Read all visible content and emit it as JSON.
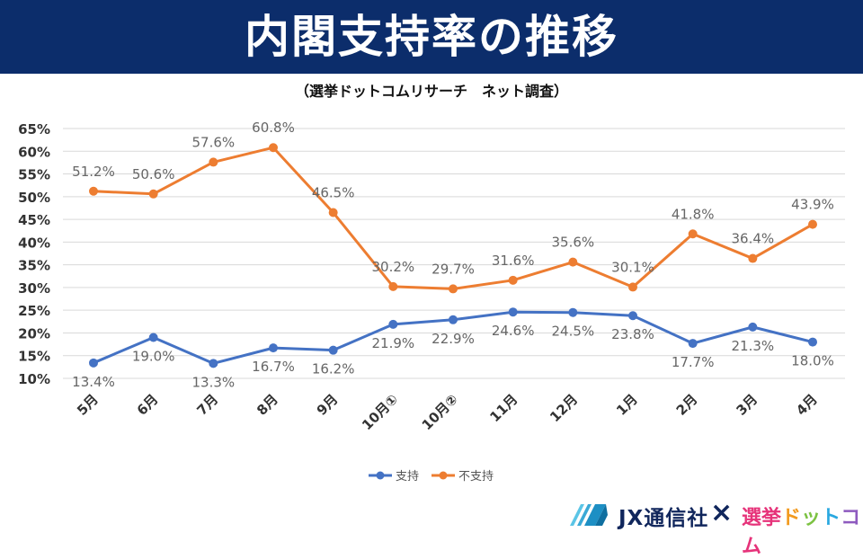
{
  "title": "内閣支持率の推移",
  "subtitle": "（選挙ドットコムリサーチ　ネット調査）",
  "chart_data": {
    "type": "line",
    "categories": [
      "5月",
      "6月",
      "7月",
      "8月",
      "9月",
      "10月①",
      "10月②",
      "11月",
      "12月",
      "1月",
      "2月",
      "3月",
      "4月"
    ],
    "series": [
      {
        "name": "支持",
        "color": "#4472c4",
        "values": [
          13.4,
          19.0,
          13.3,
          16.7,
          16.2,
          21.9,
          22.9,
          24.6,
          24.5,
          23.8,
          17.7,
          21.3,
          18.0
        ],
        "label_position": "below"
      },
      {
        "name": "不支持",
        "color": "#ed7d31",
        "values": [
          51.2,
          50.6,
          57.6,
          60.8,
          46.5,
          30.2,
          29.7,
          31.6,
          35.6,
          30.1,
          41.8,
          36.4,
          43.9
        ],
        "label_position": "above"
      }
    ],
    "yticks": [
      "10%",
      "15%",
      "20%",
      "25%",
      "30%",
      "35%",
      "40%",
      "45%",
      "50%",
      "55%",
      "60%",
      "65%"
    ],
    "ylim": [
      10,
      65
    ],
    "ystep": 5,
    "grid": true,
    "legend": "bottom"
  },
  "footer": {
    "jx_logo_text": "JX通信社",
    "cross": "×",
    "senkyo_logo_text": "選挙ドットコム"
  }
}
